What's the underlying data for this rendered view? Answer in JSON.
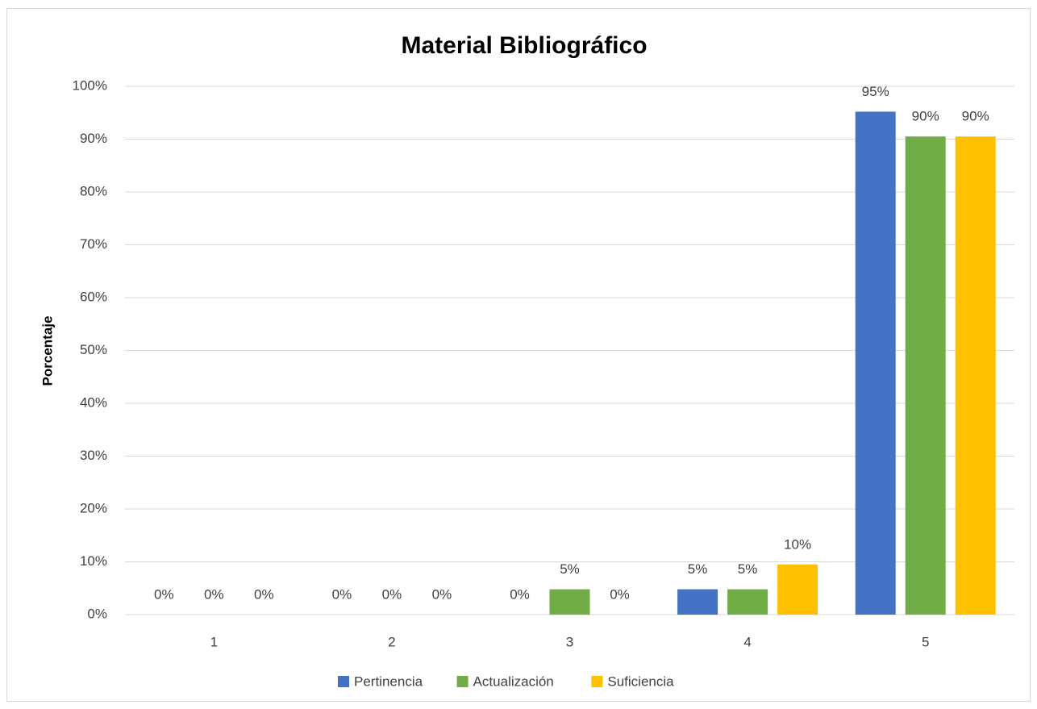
{
  "chart_data": {
    "type": "bar",
    "title": "Material Bibliográfico",
    "y_label": "Porcentaje",
    "categories": [
      "1",
      "2",
      "3",
      "4",
      "5"
    ],
    "series": [
      {
        "name": "Pertinencia",
        "color": "#4472c4",
        "values": [
          0,
          0,
          0,
          4.8,
          95.2
        ],
        "value_labels": [
          "0%",
          "0%",
          "0%",
          "5%",
          "95%"
        ]
      },
      {
        "name": "Actualización",
        "color": "#70ad47",
        "values": [
          0,
          0,
          4.8,
          4.8,
          90.5
        ],
        "value_labels": [
          "0%",
          "0%",
          "5%",
          "5%",
          "90%"
        ]
      },
      {
        "name": "Suficiencia",
        "color": "#ffc000",
        "values": [
          0,
          0,
          0,
          9.5,
          90.5
        ],
        "value_labels": [
          "0%",
          "0%",
          "0%",
          "10%",
          "90%"
        ]
      }
    ],
    "ylim": [
      0,
      100
    ],
    "yticks": [
      {
        "value": 0,
        "label": "0%"
      },
      {
        "value": 10,
        "label": "10%"
      },
      {
        "value": 20,
        "label": "20%"
      },
      {
        "value": 30,
        "label": "30%"
      },
      {
        "value": 40,
        "label": "40%"
      },
      {
        "value": 50,
        "label": "50%"
      },
      {
        "value": 60,
        "label": "60%"
      },
      {
        "value": 70,
        "label": "70%"
      },
      {
        "value": 80,
        "label": "80%"
      },
      {
        "value": 90,
        "label": "90%"
      },
      {
        "value": 100,
        "label": "100%"
      }
    ],
    "grid": true,
    "legend": "bottom"
  }
}
